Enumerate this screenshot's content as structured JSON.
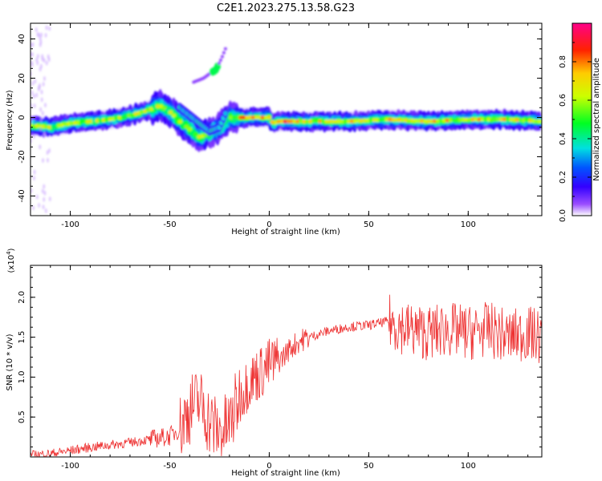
{
  "title": "C2E1.2023.275.13.58.G23",
  "chart_data": [
    {
      "type": "heatmap",
      "xlabel": "Height of straight line (km)",
      "ylabel": "Frequency (Hz)",
      "xlim": [
        -120,
        137
      ],
      "ylim": [
        -50,
        48
      ],
      "xticks": [
        -100,
        -50,
        0,
        50,
        100
      ],
      "yticks": [
        -40,
        -20,
        0,
        20,
        40
      ],
      "colorbar": {
        "label": "Normalized spectral amplitude",
        "range": [
          0.0,
          1.0
        ],
        "ticks": [
          0.0,
          0.2,
          0.4,
          0.6,
          0.8
        ],
        "tick_labels": [
          "0.0",
          "0.2",
          "0.4",
          "0.6",
          "0.8"
        ]
      },
      "ridge": {
        "x": [
          -120,
          -110,
          -100,
          -90,
          -80,
          -70,
          -60,
          -55,
          -50,
          -45,
          -40,
          -35,
          -30,
          -25,
          -20,
          -15,
          -10,
          0,
          2,
          5,
          10,
          20,
          40,
          60,
          80,
          100,
          120,
          137
        ],
        "freq": [
          -4,
          -5,
          -3,
          -2,
          -1,
          1,
          4,
          6,
          3,
          -2,
          -6,
          -10,
          -8,
          -5,
          0,
          0,
          0,
          0,
          -3,
          -2,
          -2,
          -2,
          -2,
          -1,
          -2,
          -1,
          -1,
          -2
        ]
      },
      "side_branch": {
        "x": [
          -45,
          -40,
          -35,
          -30,
          -25,
          -22
        ],
        "freq": [
          5,
          1,
          -3,
          -7,
          -5,
          2
        ]
      },
      "upper_feature": {
        "x": [
          -38,
          -33,
          -29,
          -27,
          -24,
          -22
        ],
        "freq": [
          18,
          20,
          23,
          24,
          30,
          35
        ]
      },
      "grid": false
    },
    {
      "type": "line",
      "xlabel": "Height of straight line (km)",
      "ylabel": "SNR (10 * v/v)",
      "y_multiplier": "(x10",
      "y_multiplier_exp": "4",
      "y_multiplier_close": ")",
      "xlim": [
        -120,
        137
      ],
      "ylim": [
        0.0,
        2.4
      ],
      "xticks": [
        -100,
        -50,
        0,
        50,
        100
      ],
      "yticks": [
        0.5,
        1.0,
        1.5,
        2.0
      ],
      "ytick_labels": [
        "0.5",
        "1.0",
        "1.5",
        "2.0"
      ],
      "series": [
        {
          "color": "#ee3333",
          "x": [
            -120,
            -110,
            -100,
            -90,
            -80,
            -70,
            -60,
            -50,
            -45,
            -40,
            -35,
            -30,
            -25,
            -20,
            -15,
            -10,
            -5,
            0,
            5,
            10,
            15,
            20,
            30,
            40,
            50,
            60,
            70,
            80,
            90,
            100,
            110,
            120,
            130,
            137
          ],
          "y": [
            0.02,
            0.04,
            0.08,
            0.12,
            0.15,
            0.18,
            0.22,
            0.26,
            0.35,
            0.6,
            0.7,
            0.45,
            0.3,
            0.4,
            0.75,
            0.95,
            1.05,
            1.15,
            1.2,
            1.35,
            1.45,
            1.5,
            1.58,
            1.63,
            1.65,
            1.7,
            1.6,
            1.55,
            1.6,
            1.55,
            1.6,
            1.5,
            1.55,
            1.5
          ]
        }
      ],
      "grid": false
    }
  ]
}
